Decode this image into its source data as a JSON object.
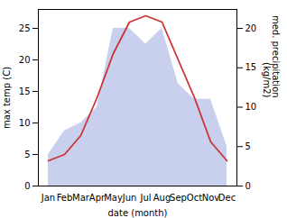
{
  "chart_data": {
    "type": "line",
    "xlabel": "date (month)",
    "ylabel": "max temp (C)",
    "y2label": "med. precipitation\n(kg/m2)",
    "categories": [
      "Jan",
      "Feb",
      "Mar",
      "Apr",
      "May",
      "Jun",
      "Jul",
      "Aug",
      "Sep",
      "Oct",
      "Nov",
      "Dec"
    ],
    "series": [
      {
        "type": "area",
        "axis": "y2",
        "color": "#c8d0ee",
        "values": [
          4,
          7,
          8,
          10,
          20,
          20,
          18,
          20,
          13,
          11,
          11,
          5
        ]
      },
      {
        "type": "line",
        "color": "#cc3333",
        "values": [
          4,
          5,
          8,
          14,
          21,
          26,
          27,
          26,
          20,
          14,
          7,
          4
        ]
      }
    ],
    "ylim": [
      0,
      28
    ],
    "yticks": [
      0,
      5,
      10,
      15,
      20,
      25
    ],
    "y2lim": [
      0,
      22.4
    ],
    "y2ticks": [
      0,
      5,
      10,
      15,
      20
    ]
  }
}
